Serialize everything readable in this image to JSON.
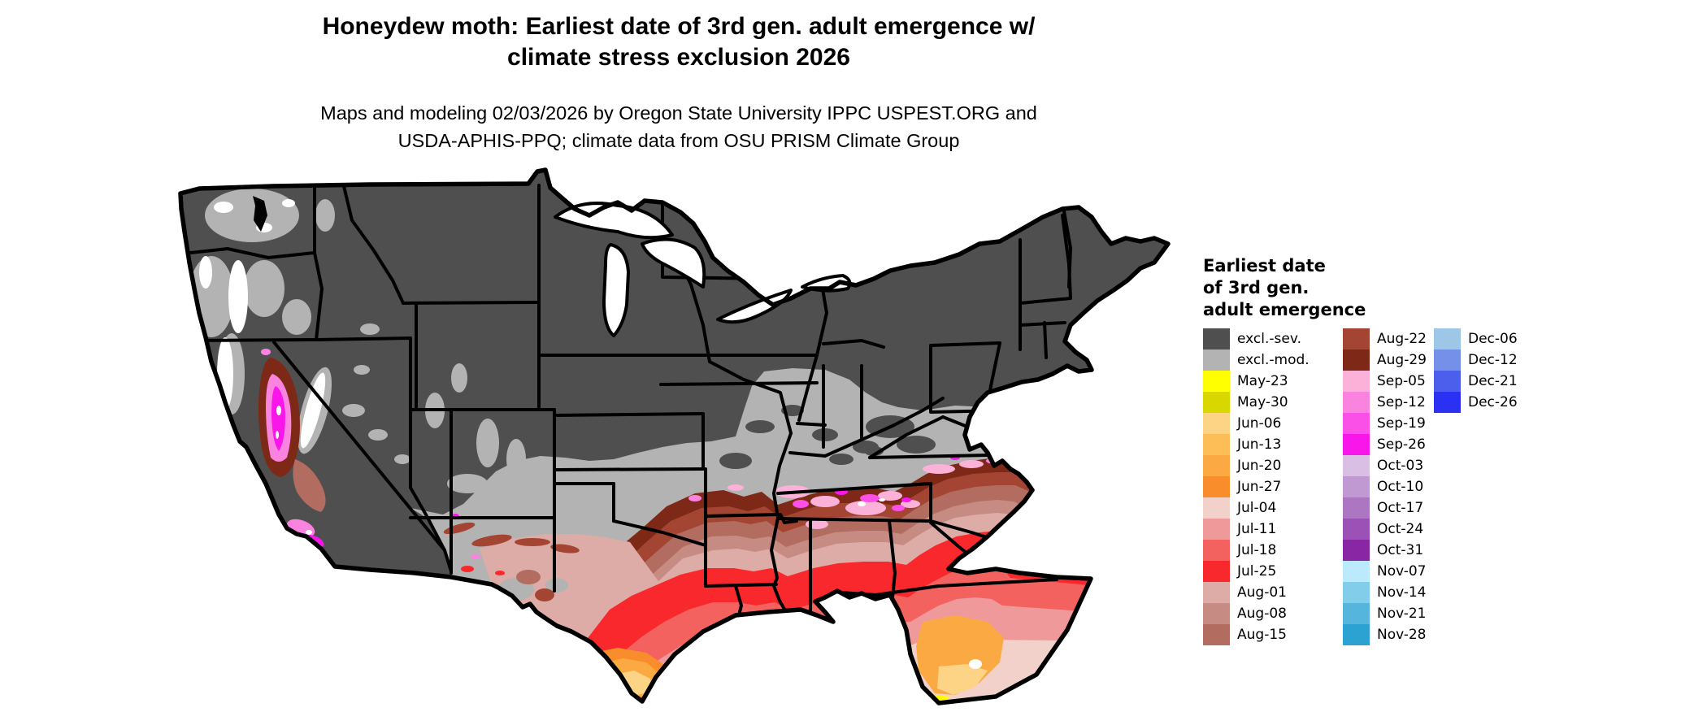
{
  "title": {
    "line1": "Honeydew moth: Earliest date of 3rd gen. adult emergence w/",
    "line2": "climate stress exclusion 2026"
  },
  "subtitle": {
    "line1": "Maps and modeling 02/03/2026 by Oregon State University IPPC USPEST.ORG and",
    "line2": "USDA-APHIS-PPQ; climate data from OSU PRISM Climate Group"
  },
  "legend": {
    "title_lines": [
      "Earliest date",
      "of 3rd gen.",
      "adult emergence"
    ],
    "columns": [
      [
        {
          "label": "excl.-sev.",
          "key": "excl_sev"
        },
        {
          "label": "excl.-mod.",
          "key": "excl_mod"
        },
        {
          "label": "May-23",
          "key": "may23"
        },
        {
          "label": "May-30",
          "key": "may30"
        },
        {
          "label": "Jun-06",
          "key": "jun06"
        },
        {
          "label": "Jun-13",
          "key": "jun13"
        },
        {
          "label": "Jun-20",
          "key": "jun20"
        },
        {
          "label": "Jun-27",
          "key": "jun27"
        },
        {
          "label": "Jul-04",
          "key": "jul04"
        },
        {
          "label": "Jul-11",
          "key": "jul11"
        },
        {
          "label": "Jul-18",
          "key": "jul18"
        },
        {
          "label": "Jul-25",
          "key": "jul25"
        },
        {
          "label": "Aug-01",
          "key": "aug01"
        },
        {
          "label": "Aug-08",
          "key": "aug08"
        },
        {
          "label": "Aug-15",
          "key": "aug15"
        }
      ],
      [
        {
          "label": "Aug-22",
          "key": "aug22"
        },
        {
          "label": "Aug-29",
          "key": "aug29"
        },
        {
          "label": "Sep-05",
          "key": "sep05"
        },
        {
          "label": "Sep-12",
          "key": "sep12"
        },
        {
          "label": "Sep-19",
          "key": "sep19"
        },
        {
          "label": "Sep-26",
          "key": "sep26"
        },
        {
          "label": "Oct-03",
          "key": "oct03"
        },
        {
          "label": "Oct-10",
          "key": "oct10"
        },
        {
          "label": "Oct-17",
          "key": "oct17"
        },
        {
          "label": "Oct-24",
          "key": "oct24"
        },
        {
          "label": "Oct-31",
          "key": "oct31"
        },
        {
          "label": "Nov-07",
          "key": "nov07"
        },
        {
          "label": "Nov-14",
          "key": "nov14"
        },
        {
          "label": "Nov-21",
          "key": "nov21"
        },
        {
          "label": "Nov-28",
          "key": "nov28"
        }
      ],
      [
        {
          "label": "Dec-06",
          "key": "dec06"
        },
        {
          "label": "Dec-12",
          "key": "dec12"
        },
        {
          "label": "Dec-21",
          "key": "dec21"
        },
        {
          "label": "Dec-26",
          "key": "dec26"
        }
      ]
    ]
  },
  "palette": {
    "excl_sev": "#4f4f4f",
    "excl_mod": "#b3b3b3",
    "may23": "#ffff00",
    "may30": "#d8d800",
    "jun06": "#fdd385",
    "jun13": "#fdbd57",
    "jun20": "#fbaa43",
    "jun27": "#f98d2b",
    "jul04": "#f2d1cb",
    "jul11": "#f0999b",
    "jul18": "#f4625f",
    "jul25": "#f9282d",
    "aug01": "#ddaca6",
    "aug08": "#c68b82",
    "aug15": "#b26d60",
    "aug22": "#a44534",
    "aug29": "#7e2817",
    "sep05": "#fbb1d8",
    "sep12": "#fb83e0",
    "sep19": "#fb50e8",
    "sep26": "#f816ea",
    "oct03": "#d9bfe3",
    "oct10": "#c099d2",
    "oct17": "#ad76c2",
    "oct24": "#9b51b5",
    "oct31": "#8826a3",
    "nov07": "#baeafb",
    "nov14": "#82cdea",
    "nov21": "#55b5dd",
    "nov28": "#2ba2d2",
    "dec06": "#9ec6e6",
    "dec12": "#7590e8",
    "dec21": "#4b5fec",
    "dec26": "#2b31f2",
    "water": "#ffffff",
    "border": "#000000"
  }
}
